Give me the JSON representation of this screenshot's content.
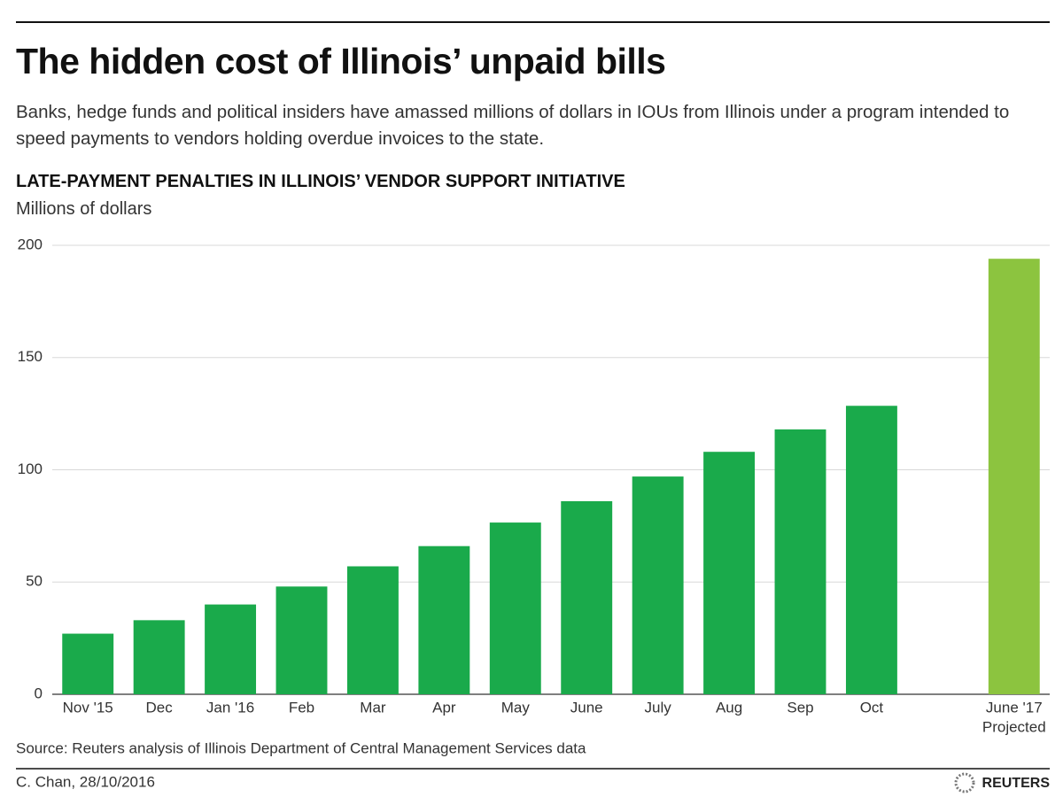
{
  "chart_data": {
    "type": "bar",
    "title": "The hidden cost of Illinois’ unpaid bills",
    "subtitle": "Banks, hedge funds and political insiders have amassed millions of dollars in IOUs from Illinois under a program intended to speed payments to vendors holding overdue invoices to the state.",
    "chart_title": "LATE-PAYMENT PENALTIES IN ILLINOIS’ VENDOR SUPPORT INITIATIVE",
    "y_label": "Millions of dollars",
    "categories": [
      "Nov '15",
      "Dec",
      "Jan '16",
      "Feb",
      "Mar",
      "Apr",
      "May",
      "June",
      "July",
      "Aug",
      "Sep",
      "Oct",
      null,
      "June '17"
    ],
    "values": [
      27,
      33,
      40,
      48,
      57,
      66,
      76.5,
      86,
      97,
      108,
      118,
      128.5,
      null,
      194
    ],
    "colors": [
      "#1aaa4b",
      "#1aaa4b",
      "#1aaa4b",
      "#1aaa4b",
      "#1aaa4b",
      "#1aaa4b",
      "#1aaa4b",
      "#1aaa4b",
      "#1aaa4b",
      "#1aaa4b",
      "#1aaa4b",
      "#1aaa4b",
      null,
      "#8cc43f"
    ],
    "annotation": "Projected",
    "ylim": [
      0,
      200
    ],
    "yticks": [
      0,
      50,
      100,
      150,
      200
    ],
    "grid": true,
    "source": "Source: Reuters analysis of Illinois Department of Central Management Services data",
    "credit": "C. Chan, 28/10/2016",
    "logo": "REUTERS"
  }
}
